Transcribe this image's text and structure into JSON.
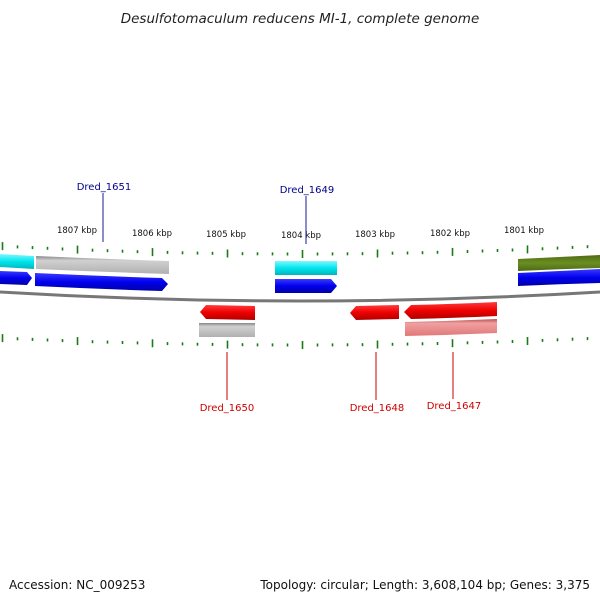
{
  "title": "Desulfotomaculum reducens MI-1, complete genome",
  "accession_label": "Accession: NC_009253",
  "stats_label": "Topology: circular; Length: 3,608,104 bp; Genes: 3,375",
  "tick_labels": [
    "1807 kbp",
    "1806 kbp",
    "1805 kbp",
    "1804 kbp",
    "1803 kbp",
    "1802 kbp",
    "1801 kbp"
  ],
  "gene_labels": [
    {
      "id": "Dred_1651",
      "color": "#00008b"
    },
    {
      "id": "Dred_1649",
      "color": "#00008b"
    },
    {
      "id": "Dred_1650",
      "color": "#cc0000"
    },
    {
      "id": "Dred_1648",
      "color": "#cc0000"
    },
    {
      "id": "Dred_1647",
      "color": "#cc0000"
    }
  ],
  "colors": {
    "cds": "#0000ee",
    "cds_reverse": "#ee0000",
    "rna_like": "#00e5ee",
    "gene_forward": "#b8b8b8",
    "gene_reverse": "#e88a8a",
    "other": "#6b8e23",
    "backbone": "#777777",
    "ticks": "#1a7a1a"
  }
}
